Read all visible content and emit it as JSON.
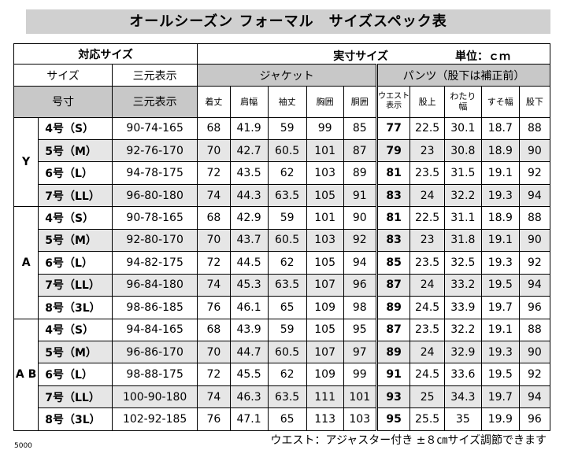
{
  "title": "オールシーズン フォーマル　サイズスペック表",
  "header": {
    "corresponding_size": "対応サイズ",
    "actual_size": "実寸サイズ",
    "unit": "単位：ｃｍ",
    "size": "サイズ",
    "three_dim": "三元表示",
    "jacket": "ジャケット",
    "pants": "パンツ（股下は補正前）",
    "number": "号寸",
    "three_dim_2": "三元表示",
    "cols": {
      "length": "着丈",
      "shoulder": "肩幅",
      "sleeve": "袖丈",
      "chest": "胸囲",
      "waist_j": "胴囲",
      "waist_p_1": "ウエスト",
      "waist_p_2": "表示",
      "hip_top": "股上",
      "thigh_1": "わたり",
      "thigh_2": "幅",
      "hem": "すそ幅",
      "inseam": "股下"
    }
  },
  "groups": [
    {
      "label": "Y",
      "rows": [
        {
          "size": "4号（S）",
          "three": "90-74-165",
          "length": "68",
          "shoulder": "41.9",
          "sleeve": "59",
          "chest": "99",
          "waist_j": "85",
          "waist": "77",
          "hip_top": "22.5",
          "thigh": "30.1",
          "hem": "18.7",
          "inseam": "88"
        },
        {
          "size": "5号（M）",
          "three": "92-76-170",
          "length": "70",
          "shoulder": "42.7",
          "sleeve": "60.5",
          "chest": "101",
          "waist_j": "87",
          "waist": "79",
          "hip_top": "23",
          "thigh": "30.8",
          "hem": "18.9",
          "inseam": "90"
        },
        {
          "size": "6号（L）",
          "three": "94-78-175",
          "length": "72",
          "shoulder": "43.5",
          "sleeve": "62",
          "chest": "103",
          "waist_j": "89",
          "waist": "81",
          "hip_top": "23.5",
          "thigh": "31.5",
          "hem": "19.1",
          "inseam": "92"
        },
        {
          "size": "7号（LL）",
          "three": "96-80-180",
          "length": "74",
          "shoulder": "44.3",
          "sleeve": "63.5",
          "chest": "105",
          "waist_j": "91",
          "waist": "83",
          "hip_top": "24",
          "thigh": "32.2",
          "hem": "19.3",
          "inseam": "94"
        }
      ]
    },
    {
      "label": "A",
      "rows": [
        {
          "size": "4号（S）",
          "three": "90-78-165",
          "length": "68",
          "shoulder": "42.9",
          "sleeve": "59",
          "chest": "101",
          "waist_j": "90",
          "waist": "81",
          "hip_top": "22.5",
          "thigh": "31.1",
          "hem": "18.9",
          "inseam": "88"
        },
        {
          "size": "5号（M）",
          "three": "92-80-170",
          "length": "70",
          "shoulder": "43.7",
          "sleeve": "60.5",
          "chest": "103",
          "waist_j": "92",
          "waist": "83",
          "hip_top": "23",
          "thigh": "31.8",
          "hem": "19.1",
          "inseam": "90"
        },
        {
          "size": "6号（L）",
          "three": "94-82-175",
          "length": "72",
          "shoulder": "44.5",
          "sleeve": "62",
          "chest": "105",
          "waist_j": "94",
          "waist": "85",
          "hip_top": "23.5",
          "thigh": "32.5",
          "hem": "19.3",
          "inseam": "92"
        },
        {
          "size": "7号（LL）",
          "three": "96-84-180",
          "length": "74",
          "shoulder": "45.3",
          "sleeve": "63.5",
          "chest": "107",
          "waist_j": "96",
          "waist": "87",
          "hip_top": "24",
          "thigh": "33.2",
          "hem": "19.5",
          "inseam": "94"
        },
        {
          "size": "8号（3L）",
          "three": "98-86-185",
          "length": "76",
          "shoulder": "46.1",
          "sleeve": "65",
          "chest": "109",
          "waist_j": "98",
          "waist": "89",
          "hip_top": "24.5",
          "thigh": "33.9",
          "hem": "19.7",
          "inseam": "96"
        }
      ]
    },
    {
      "label": "A B",
      "rows": [
        {
          "size": "4号（S）",
          "three": "94-84-165",
          "length": "68",
          "shoulder": "43.9",
          "sleeve": "59",
          "chest": "105",
          "waist_j": "95",
          "waist": "87",
          "hip_top": "23.5",
          "thigh": "32.2",
          "hem": "19.1",
          "inseam": "88"
        },
        {
          "size": "5号（M）",
          "three": "96-86-170",
          "length": "70",
          "shoulder": "44.7",
          "sleeve": "60.5",
          "chest": "107",
          "waist_j": "97",
          "waist": "89",
          "hip_top": "24",
          "thigh": "32.9",
          "hem": "19.3",
          "inseam": "90"
        },
        {
          "size": "6号（L）",
          "three": "98-88-175",
          "length": "72",
          "shoulder": "45.5",
          "sleeve": "62",
          "chest": "109",
          "waist_j": "99",
          "waist": "91",
          "hip_top": "24.5",
          "thigh": "33.6",
          "hem": "19.5",
          "inseam": "92"
        },
        {
          "size": "7号（LL）",
          "three": "100-90-180",
          "length": "74",
          "shoulder": "46.3",
          "sleeve": "63.5",
          "chest": "111",
          "waist_j": "101",
          "waist": "93",
          "hip_top": "25",
          "thigh": "34.3",
          "hem": "19.7",
          "inseam": "94"
        },
        {
          "size": "8号（3L）",
          "three": "102-92-185",
          "length": "76",
          "shoulder": "47.1",
          "sleeve": "65",
          "chest": "113",
          "waist_j": "103",
          "waist": "95",
          "hip_top": "25.5",
          "thigh": "35",
          "hem": "19.9",
          "inseam": "96"
        }
      ]
    }
  ],
  "footer_note": "ウエスト：アジャスター付き ±８㎝サイズ調節できます",
  "footer_code": "5000",
  "colors": {
    "header_gray": "#c8c8c8",
    "title_gray": "#d0d0d0",
    "alt_row": "#e6e6e6"
  }
}
